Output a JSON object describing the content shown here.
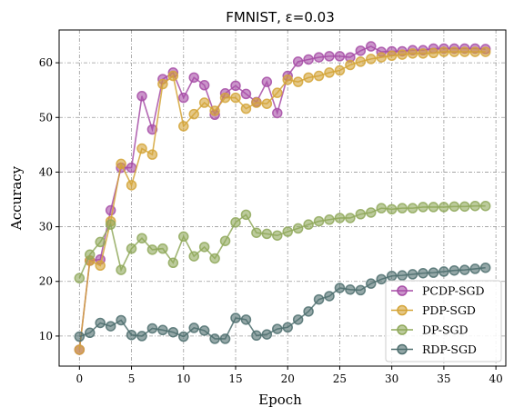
{
  "chart_data": {
    "type": "line",
    "title": "FMNIST, ε=0.03",
    "xlabel": "Epoch",
    "ylabel": "Accuracy",
    "xlim": [
      -1.95,
      40.95
    ],
    "ylim": [
      4.5,
      66
    ],
    "xticks": [
      0,
      5,
      10,
      15,
      20,
      25,
      30,
      35,
      40
    ],
    "yticks": [
      10,
      20,
      30,
      40,
      50,
      60
    ],
    "grid": true,
    "legend_position": "lower-right",
    "x": [
      0,
      1,
      2,
      3,
      4,
      5,
      6,
      7,
      8,
      9,
      10,
      11,
      12,
      13,
      14,
      15,
      16,
      17,
      18,
      19,
      20,
      21,
      22,
      23,
      24,
      25,
      26,
      27,
      28,
      29,
      30,
      31,
      32,
      33,
      34,
      35,
      36,
      37,
      38,
      39
    ],
    "series": [
      {
        "name": "PCDP-SGD",
        "color": "#a64ca6",
        "values": [
          7.5,
          23.8,
          24.0,
          33.0,
          40.8,
          40.8,
          53.9,
          47.8,
          57.0,
          58.2,
          53.6,
          57.3,
          55.9,
          50.5,
          54.4,
          55.8,
          54.3,
          52.8,
          56.5,
          50.8,
          57.6,
          60.2,
          60.6,
          61.0,
          61.2,
          61.2,
          61.0,
          62.2,
          63.0,
          62.0,
          62.1,
          62.1,
          62.3,
          62.3,
          62.6,
          62.6,
          62.6,
          62.6,
          62.6,
          62.5
        ]
      },
      {
        "name": "PDP-SGD",
        "color": "#d4a437",
        "values": [
          7.5,
          23.8,
          22.9,
          31.0,
          41.5,
          37.6,
          44.3,
          43.2,
          56.1,
          57.6,
          48.4,
          50.6,
          52.7,
          51.2,
          53.6,
          53.6,
          51.6,
          52.7,
          52.5,
          54.5,
          56.9,
          56.5,
          57.3,
          57.6,
          58.2,
          58.6,
          59.6,
          60.2,
          60.7,
          61.0,
          61.3,
          61.5,
          61.7,
          61.7,
          61.8,
          62.0,
          62.0,
          62.0,
          62.0,
          62.0
        ]
      },
      {
        "name": "DP-SGD",
        "color": "#8fa85a",
        "values": [
          20.6,
          24.9,
          27.2,
          30.4,
          22.1,
          26.0,
          27.9,
          25.8,
          26.0,
          23.4,
          28.2,
          24.6,
          26.3,
          24.2,
          27.4,
          30.8,
          32.2,
          28.9,
          28.7,
          28.4,
          29.1,
          29.7,
          30.4,
          31.0,
          31.3,
          31.6,
          31.6,
          32.3,
          32.6,
          33.4,
          33.2,
          33.4,
          33.4,
          33.6,
          33.6,
          33.6,
          33.7,
          33.7,
          33.8,
          33.8
        ]
      },
      {
        "name": "RDP-SGD",
        "color": "#4e6e6e",
        "values": [
          9.9,
          10.6,
          12.4,
          11.8,
          12.9,
          10.2,
          10.0,
          11.4,
          11.1,
          10.7,
          9.9,
          11.5,
          11.0,
          9.5,
          9.5,
          13.3,
          13.0,
          10.1,
          10.3,
          11.3,
          11.6,
          13.0,
          14.5,
          16.7,
          17.3,
          18.8,
          18.5,
          18.4,
          19.6,
          20.4,
          21.0,
          21.1,
          21.3,
          21.5,
          21.6,
          21.8,
          22.0,
          22.1,
          22.3,
          22.5
        ]
      }
    ]
  }
}
